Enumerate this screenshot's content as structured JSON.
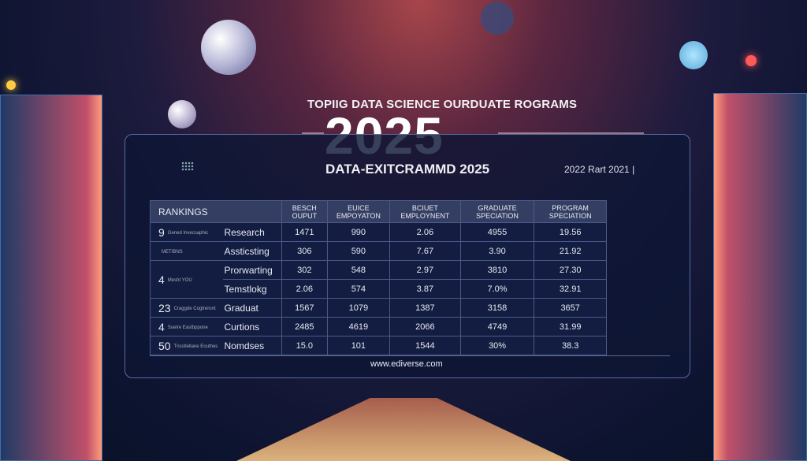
{
  "header": {
    "subtitle": "TOPIIG DATA SCIENCE OURDUATE ROGRAMS",
    "year": "2025"
  },
  "panel": {
    "name": "DATA-EXITCRAMMD 2025",
    "years": "2022 Rart 2021 |",
    "url": "www.ediverse.com"
  },
  "table": {
    "headers": [
      "RANKINGS",
      "BESCH OUPUT",
      "EUICE EMPOYATON",
      "BCIUET EMPLOYNENT",
      "GRADUATE SPECIATION",
      "PROGRAM SPECIATION"
    ],
    "rows": [
      {
        "rank": "9",
        "rank_note": "Gened Invecsaphic",
        "name": "Research",
        "values": [
          "1471",
          "990",
          "2.06",
          "4955",
          "19.56"
        ]
      },
      {
        "rank": "",
        "rank_note": "METIBNS",
        "name": "Assticsting",
        "values": [
          "306",
          "590",
          "7.67",
          "3.90",
          "21.92"
        ]
      },
      {
        "rank": "4",
        "rank_note": "Mesht YOU",
        "name": "Prorwarting",
        "values": [
          "302",
          "548",
          "2.97",
          "3810",
          "27.30"
        ]
      },
      {
        "rank": "",
        "rank_note": "",
        "name": "Temstlokg",
        "values": [
          "2.06",
          "574",
          "3.87",
          "7.0%",
          "32.91"
        ]
      },
      {
        "rank": "23",
        "rank_note": "Craggde Cogtreront",
        "name": "Graduat",
        "values": [
          "1567",
          "1079",
          "1387",
          "3158",
          "3657"
        ]
      },
      {
        "rank": "4",
        "rank_note": "Sueire Eastbppone",
        "name": "Curtions",
        "values": [
          "2485",
          "4619",
          "2066",
          "4749",
          "31.99"
        ]
      },
      {
        "rank": "50",
        "rank_note": "Tnsstlellane Eouthes",
        "name": "Nomdses",
        "values": [
          "15.0",
          "101",
          "1544",
          "30%",
          "38.3"
        ]
      }
    ]
  }
}
